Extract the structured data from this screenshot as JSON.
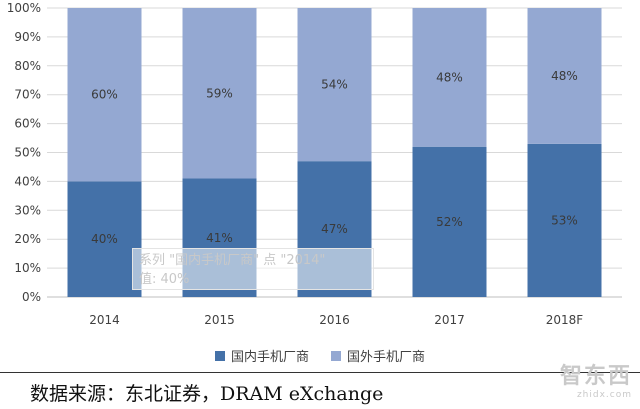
{
  "chart_data": {
    "type": "bar",
    "stacked": true,
    "categories": [
      "2014",
      "2015",
      "2016",
      "2017",
      "2018F"
    ],
    "series": [
      {
        "name": "国内手机厂商",
        "values": [
          40,
          41,
          47,
          52,
          53
        ],
        "labels": [
          "40%",
          "41%",
          "47%",
          "52%",
          "53%"
        ],
        "color": "#4471a8"
      },
      {
        "name": "国外手机厂商",
        "values": [
          60,
          59,
          54,
          48,
          48
        ],
        "labels": [
          "60%",
          "59%",
          "54%",
          "48%",
          "48%"
        ],
        "color": "#94a8d2"
      }
    ],
    "ylim": [
      0,
      100
    ],
    "yticks": [
      "0%",
      "10%",
      "20%",
      "30%",
      "40%",
      "50%",
      "60%",
      "70%",
      "80%",
      "90%",
      "100%"
    ],
    "grid": true,
    "legend": "bottom"
  },
  "tooltip": {
    "line1": "系列 \"国内手机厂商\" 点 \"2014\"",
    "line2": "值: 40%"
  },
  "source": "数据来源：东北证券，DRAM eXchange",
  "watermark": {
    "main": "智东西",
    "sub": "zhidx.com"
  }
}
